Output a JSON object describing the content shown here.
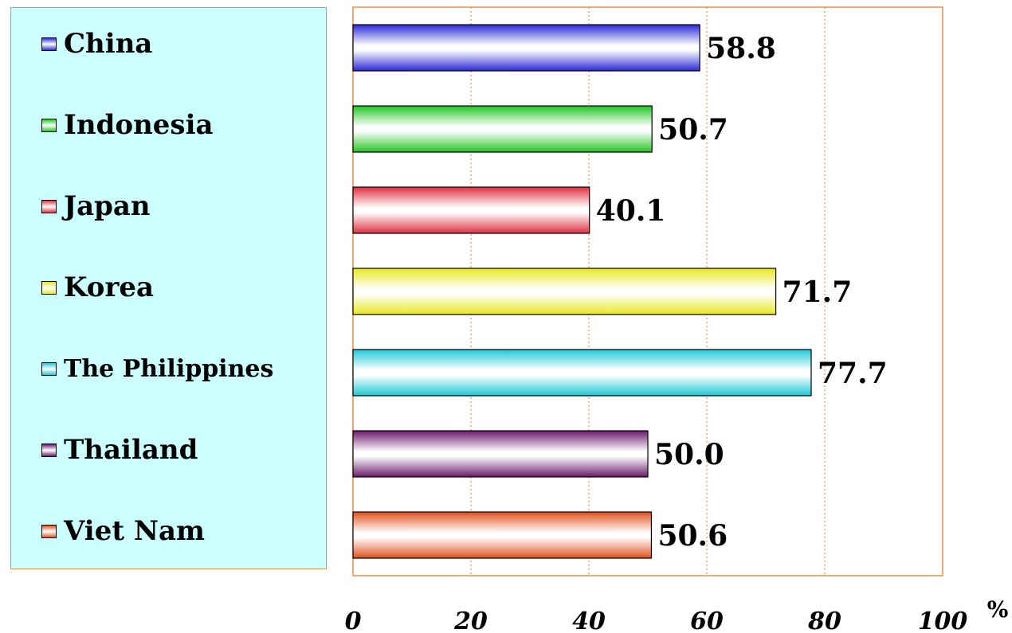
{
  "chart_data": {
    "type": "bar",
    "orientation": "horizontal",
    "categories": [
      "China",
      "Indonesia",
      "Japan",
      "Korea",
      "The Philippines",
      "Thailand",
      "Viet Nam"
    ],
    "values": [
      58.8,
      50.7,
      40.1,
      71.7,
      77.7,
      50.0,
      50.6
    ],
    "value_labels": [
      "58.8",
      "50.7",
      "40.1",
      "71.7",
      "77.7",
      "50.0",
      "50.6"
    ],
    "colors": [
      "#2a2ad8",
      "#22c522",
      "#e03040",
      "#e8e820",
      "#20c8d8",
      "#6a1a6a",
      "#e0501e"
    ],
    "xlim": [
      0,
      100
    ],
    "xticks": [
      0,
      20,
      40,
      60,
      80,
      100
    ],
    "xtick_labels": [
      "0",
      "20",
      "40",
      "60",
      "80",
      "100"
    ],
    "unit_label": "%",
    "grid": true,
    "legend_placement": "left"
  }
}
